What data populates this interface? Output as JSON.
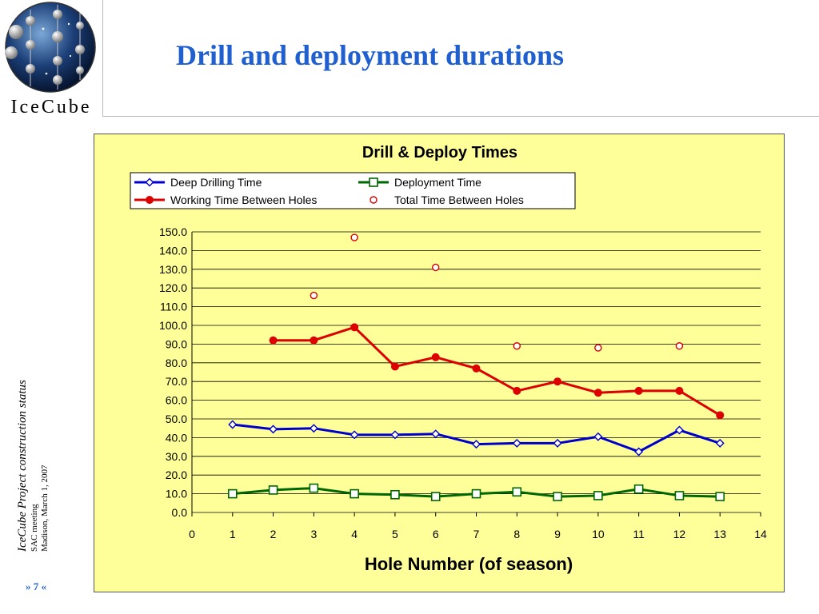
{
  "slide": {
    "title": "Drill and deployment durations",
    "logo_text": "IceCube",
    "side_project": "IceCube Project construction status",
    "side_meeting": "SAC meeting",
    "side_date": "Madison, March 1, 2007",
    "page_number": "» 7 «"
  },
  "chart_data": {
    "type": "line",
    "title": "Drill & Deploy Times",
    "xlabel": "Hole Number (of season)",
    "ylabel": "",
    "xlim": [
      0,
      14
    ],
    "ylim": [
      0,
      150
    ],
    "x_ticks": [
      "0",
      "1",
      "2",
      "3",
      "4",
      "5",
      "6",
      "7",
      "8",
      "9",
      "10",
      "11",
      "12",
      "13",
      "14"
    ],
    "y_ticks": [
      "0.0",
      "10.0",
      "20.0",
      "30.0",
      "40.0",
      "50.0",
      "60.0",
      "70.0",
      "80.0",
      "90.0",
      "100.0",
      "110.0",
      "120.0",
      "130.0",
      "140.0",
      "150.0"
    ],
    "grid": "horizontal",
    "background": "#ffff99",
    "legend_position": "top",
    "series": [
      {
        "name": "Deep Drilling Time",
        "color": "#0000cc",
        "marker": "diamond-open",
        "line": true,
        "points": [
          [
            1,
            47
          ],
          [
            2,
            44.5
          ],
          [
            3,
            45
          ],
          [
            4,
            41.5
          ],
          [
            5,
            41.5
          ],
          [
            6,
            42
          ],
          [
            7,
            36.5
          ],
          [
            8,
            37
          ],
          [
            9,
            37
          ],
          [
            10,
            40.5
          ],
          [
            11,
            32.5
          ],
          [
            12,
            44
          ],
          [
            13,
            37
          ]
        ]
      },
      {
        "name": "Deployment Time",
        "color": "#006600",
        "marker": "square-open",
        "line": true,
        "points": [
          [
            1,
            10
          ],
          [
            2,
            12
          ],
          [
            3,
            13
          ],
          [
            4,
            10
          ],
          [
            5,
            9.5
          ],
          [
            6,
            8.5
          ],
          [
            7,
            10
          ],
          [
            8,
            11
          ],
          [
            9,
            8.5
          ],
          [
            10,
            9
          ],
          [
            11,
            12.5
          ],
          [
            12,
            9
          ],
          [
            13,
            8.5
          ]
        ]
      },
      {
        "name": "Working Time Between Holes",
        "color": "#dd0000",
        "marker": "circle-filled",
        "line": true,
        "points": [
          [
            2,
            92
          ],
          [
            3,
            92
          ],
          [
            4,
            99
          ],
          [
            5,
            78
          ],
          [
            6,
            83
          ],
          [
            7,
            77
          ],
          [
            8,
            65
          ],
          [
            9,
            70
          ],
          [
            10,
            64
          ],
          [
            11,
            65
          ],
          [
            12,
            65
          ],
          [
            13,
            52
          ]
        ]
      },
      {
        "name": "Total Time Between Holes",
        "color": "#dd0000",
        "marker": "circle-open",
        "line": false,
        "points": [
          [
            3,
            116
          ],
          [
            4,
            147
          ],
          [
            6,
            131
          ],
          [
            8,
            89
          ],
          [
            10,
            88
          ],
          [
            12,
            89
          ]
        ]
      }
    ]
  }
}
